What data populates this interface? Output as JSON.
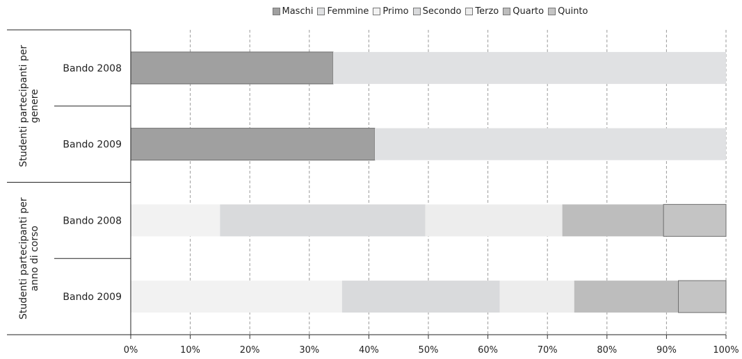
{
  "chart_data": {
    "type": "bar",
    "orientation": "horizontal",
    "stacked": true,
    "percent": true,
    "xlim": [
      0,
      100
    ],
    "x_ticks": [
      "0%",
      "10%",
      "20%",
      "30%",
      "40%",
      "50%",
      "60%",
      "70%",
      "80%",
      "90%",
      "100%"
    ],
    "grid": "vertical dashed",
    "legend_position": "top",
    "legend": [
      {
        "name": "Maschi",
        "color": "#a0a0a0"
      },
      {
        "name": "Femmine",
        "color": "#e0e1e3"
      },
      {
        "name": "Primo",
        "color": "#f2f2f2"
      },
      {
        "name": "Secondo",
        "color": "#d9dadc"
      },
      {
        "name": "Terzo",
        "color": "#ededed"
      },
      {
        "name": "Quarto",
        "color": "#bdbdbd"
      },
      {
        "name": "Quinto",
        "color": "#c4c4c4"
      }
    ],
    "groups": [
      {
        "label": "Studenti partecipanti per genere",
        "rows": [
          {
            "label": "Bando 2008",
            "segments": [
              {
                "series": "Maschi",
                "value": 34
              },
              {
                "series": "Femmine",
                "value": 66
              }
            ]
          },
          {
            "label": "Bando 2009",
            "segments": [
              {
                "series": "Maschi",
                "value": 41
              },
              {
                "series": "Femmine",
                "value": 59
              }
            ]
          }
        ]
      },
      {
        "label": "Studenti partecipanti per anno di corso",
        "rows": [
          {
            "label": "Bando 2008",
            "segments": [
              {
                "series": "Primo",
                "value": 15
              },
              {
                "series": "Secondo",
                "value": 34.5
              },
              {
                "series": "Terzo",
                "value": 23
              },
              {
                "series": "Quarto",
                "value": 17
              },
              {
                "series": "Quinto",
                "value": 10.5
              }
            ]
          },
          {
            "label": "Bando 2009",
            "segments": [
              {
                "series": "Primo",
                "value": 35.5
              },
              {
                "series": "Secondo",
                "value": 26.5
              },
              {
                "series": "Terzo",
                "value": 12.5
              },
              {
                "series": "Quarto",
                "value": 17.5
              },
              {
                "series": "Quinto",
                "value": 8
              }
            ]
          }
        ]
      }
    ]
  }
}
